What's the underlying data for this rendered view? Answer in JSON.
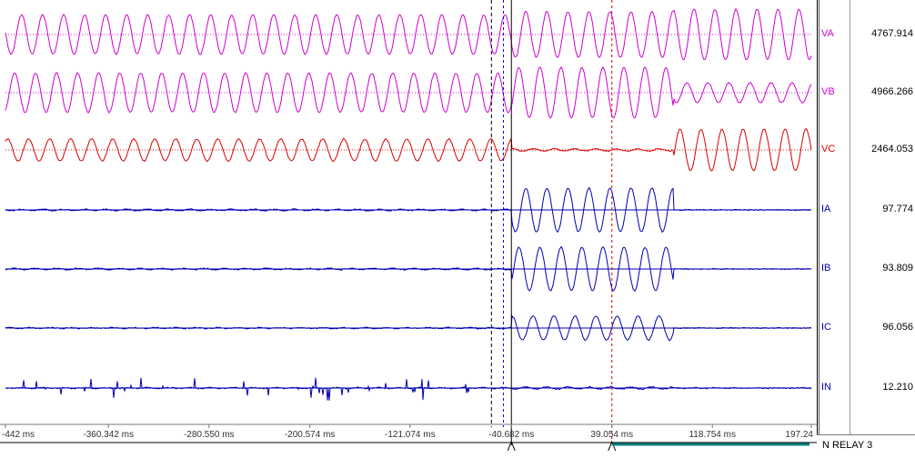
{
  "chart_data": {
    "type": "line",
    "title": "",
    "xlabel": "",
    "ylabel": "",
    "x_unit": "ms",
    "x_range": [
      -442,
      197.24
    ],
    "x_tick_labels": [
      "-442 ms",
      "-360.342 ms",
      "-280.550 ms",
      "-200.574 ms",
      "-121.074 ms",
      "-40.682 ms",
      "39.054 ms",
      "118.754 ms",
      "197.24"
    ],
    "x_tick_values": [
      -442,
      -360.342,
      -280.55,
      -200.574,
      -121.074,
      -40.682,
      39.054,
      118.754,
      197.24
    ],
    "cursors_ms": [
      -56.5,
      -47,
      -40.682,
      39.054
    ],
    "fault_start_ms": -40.682,
    "series": [
      {
        "name": "VA",
        "value": "4767.914",
        "color": "#d000d0",
        "pre_amp": 0.9,
        "fault_amp": 1.05,
        "post_amp": 1.15
      },
      {
        "name": "VB",
        "value": "4966.266",
        "color": "#d000d0",
        "pre_amp": 0.9,
        "fault_amp": 1.15,
        "post_amp": 0.45
      },
      {
        "name": "VC",
        "value": "2464.053",
        "color": "#d80000",
        "pre_amp": 0.5,
        "fault_amp": 0.05,
        "post_amp": 0.95
      },
      {
        "name": "IA",
        "value": "97.774",
        "color": "#0000b0",
        "pre_amp": 0.03,
        "fault_amp": 1.0,
        "post_amp": 0.0
      },
      {
        "name": "IB",
        "value": "93.809",
        "color": "#0000b0",
        "pre_amp": 0.03,
        "fault_amp": 1.0,
        "post_amp": 0.0
      },
      {
        "name": "IC",
        "value": "96.056",
        "color": "#0000b0",
        "pre_amp": 0.02,
        "fault_amp": 0.55,
        "post_amp": 0.0
      },
      {
        "name": "IN",
        "value": "12.210",
        "color": "#0000b0",
        "pre_amp": 0.02,
        "fault_amp": 0.05,
        "post_amp": 0.01
      }
    ]
  },
  "relay": {
    "label": "N  RELAY 3"
  }
}
